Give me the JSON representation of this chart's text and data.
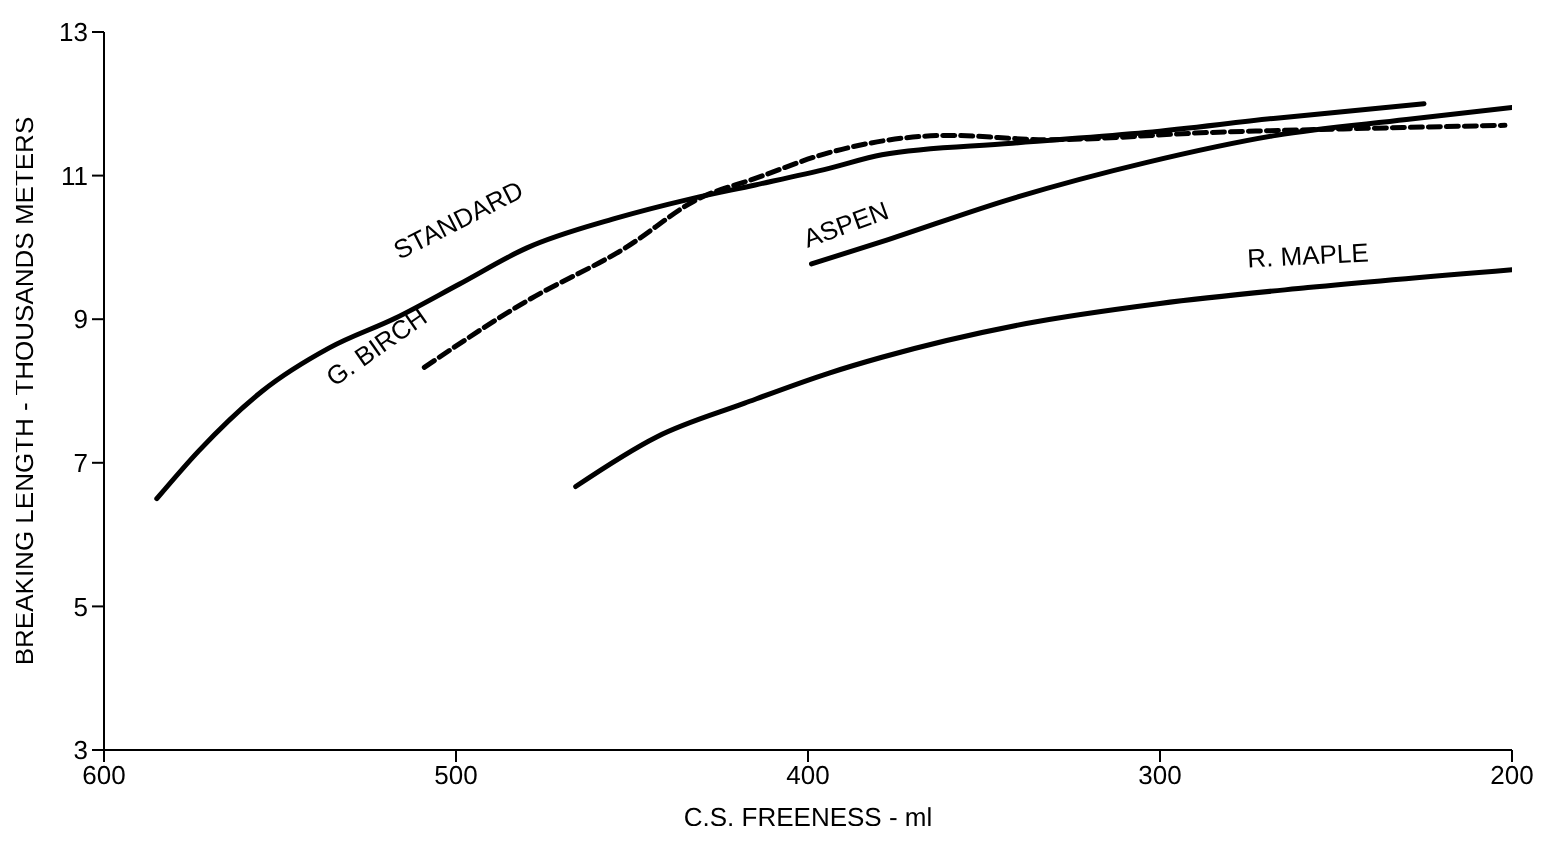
{
  "chart_data": {
    "type": "line",
    "xlabel": "C.S. FREENESS - ml",
    "ylabel": "BREAKING LENGTH - THOUSANDS METERS",
    "xlim": [
      600,
      200
    ],
    "xticks": [
      600,
      500,
      400,
      300,
      200
    ],
    "ylim": [
      3,
      13
    ],
    "yticks": [
      3,
      5,
      7,
      9,
      11,
      13
    ],
    "marker": "none",
    "series": [
      {
        "name": "STANDARD",
        "color": "#000000",
        "line_style": "solid",
        "x": [
          585,
          573,
          555,
          536,
          517,
          499,
          480,
          455,
          433,
          415,
          394,
          379,
          342,
          304,
          267,
          225
        ],
        "values": [
          6.5,
          7.17,
          8.0,
          8.6,
          9.02,
          9.49,
          9.99,
          10.4,
          10.68,
          10.87,
          11.1,
          11.29,
          11.45,
          11.6,
          11.8,
          12.0
        ]
      },
      {
        "name": "G. BIRCH",
        "color": "#000000",
        "line_style": "dashed",
        "x": [
          509,
          480,
          452,
          431,
          415,
          394,
          360,
          332,
          286,
          248,
          202
        ],
        "values": [
          8.33,
          9.25,
          9.99,
          10.68,
          10.96,
          11.32,
          11.56,
          11.5,
          11.6,
          11.65,
          11.7
        ]
      },
      {
        "name": "ASPEN",
        "color": "#000000",
        "line_style": "solid",
        "x": [
          399,
          379,
          342,
          304,
          267,
          230,
          200
        ],
        "values": [
          9.77,
          10.08,
          10.68,
          11.18,
          11.56,
          11.78,
          11.95
        ]
      },
      {
        "name": "R. MAPLE",
        "color": "#000000",
        "line_style": "solid",
        "x": [
          466,
          443,
          418,
          394,
          379,
          338,
          300,
          258,
          200
        ],
        "values": [
          6.67,
          7.36,
          7.83,
          8.25,
          8.47,
          8.94,
          9.22,
          9.44,
          9.69
        ]
      }
    ]
  }
}
